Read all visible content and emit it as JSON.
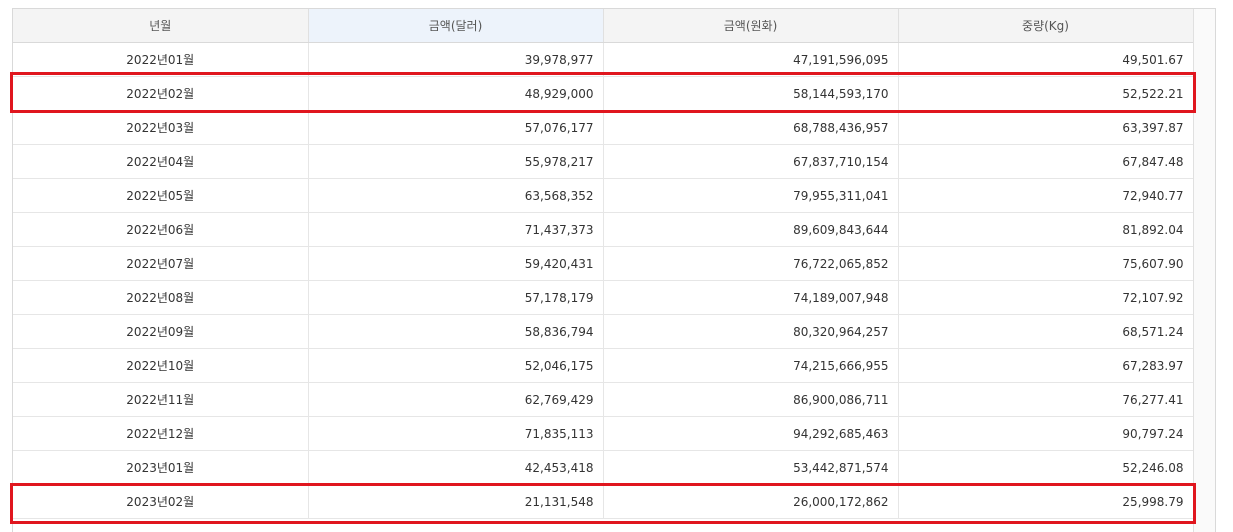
{
  "columns": {
    "period": "년월",
    "usd": "금액(달러)",
    "krw": "금액(원화)",
    "weight": "중량(Kg)"
  },
  "rows": [
    {
      "period": "2022년01월",
      "usd": "39,978,977",
      "krw": "47,191,596,095",
      "weight": "49,501.67"
    },
    {
      "period": "2022년02월",
      "usd": "48,929,000",
      "krw": "58,144,593,170",
      "weight": "52,522.21"
    },
    {
      "period": "2022년03월",
      "usd": "57,076,177",
      "krw": "68,788,436,957",
      "weight": "63,397.87"
    },
    {
      "period": "2022년04월",
      "usd": "55,978,217",
      "krw": "67,837,710,154",
      "weight": "67,847.48"
    },
    {
      "period": "2022년05월",
      "usd": "63,568,352",
      "krw": "79,955,311,041",
      "weight": "72,940.77"
    },
    {
      "period": "2022년06월",
      "usd": "71,437,373",
      "krw": "89,609,843,644",
      "weight": "81,892.04"
    },
    {
      "period": "2022년07월",
      "usd": "59,420,431",
      "krw": "76,722,065,852",
      "weight": "75,607.90"
    },
    {
      "period": "2022년08월",
      "usd": "57,178,179",
      "krw": "74,189,007,948",
      "weight": "72,107.92"
    },
    {
      "period": "2022년09월",
      "usd": "58,836,794",
      "krw": "80,320,964,257",
      "weight": "68,571.24"
    },
    {
      "period": "2022년10월",
      "usd": "52,046,175",
      "krw": "74,215,666,955",
      "weight": "67,283.97"
    },
    {
      "period": "2022년11월",
      "usd": "62,769,429",
      "krw": "86,900,086,711",
      "weight": "76,277.41"
    },
    {
      "period": "2022년12월",
      "usd": "71,835,113",
      "krw": "94,292,685,463",
      "weight": "90,797.24"
    },
    {
      "period": "2023년01월",
      "usd": "42,453,418",
      "krw": "53,442,871,574",
      "weight": "52,246.08"
    },
    {
      "period": "2023년02월",
      "usd": "21,131,548",
      "krw": "26,000,172,862",
      "weight": "25,998.79"
    }
  ],
  "highlight_color": "#e0161e"
}
